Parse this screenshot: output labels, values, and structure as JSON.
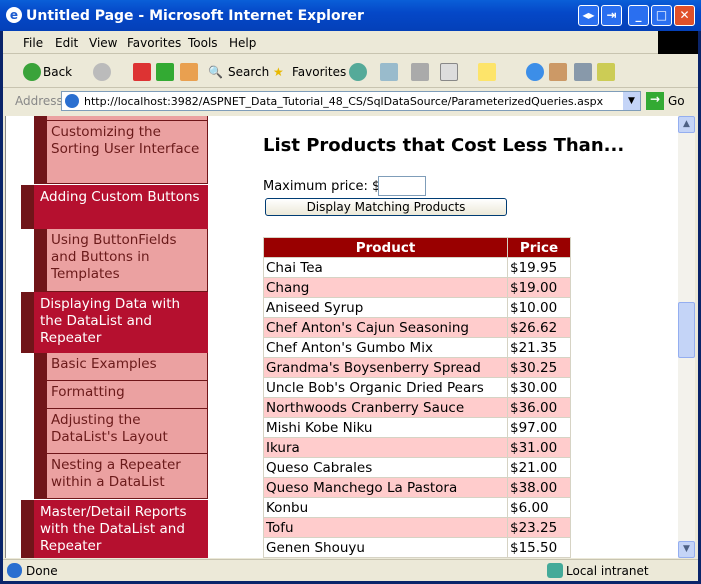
{
  "window": {
    "title": "Untitled Page - Microsoft Internet Explorer"
  },
  "menu": [
    "File",
    "Edit",
    "View",
    "Favorites",
    "Tools",
    "Help"
  ],
  "toolbar": {
    "back": "Back",
    "search": "Search",
    "favorites": "Favorites"
  },
  "address": {
    "label": "Address",
    "url": "http://localhost:3982/ASPNET_Data_Tutorial_48_CS/SqlDataSource/ParameterizedQueries.aspx",
    "go": "Go"
  },
  "sidebar": [
    {
      "type": "sub",
      "label": "Customizing the Sorting User Interface"
    },
    {
      "type": "top",
      "label": "Adding Custom Buttons"
    },
    {
      "type": "sub",
      "label": "Using ButtonFields and Buttons in Templates"
    },
    {
      "type": "top",
      "label": "Displaying Data with the DataList and Repeater"
    },
    {
      "type": "sub",
      "label": "Basic Examples"
    },
    {
      "type": "sub",
      "label": "Formatting"
    },
    {
      "type": "sub",
      "label": "Adjusting the DataList's Layout"
    },
    {
      "type": "sub",
      "label": "Nesting a Repeater within a DataList"
    },
    {
      "type": "top",
      "label": "Master/Detail Reports with the DataList and Repeater"
    }
  ],
  "main": {
    "heading": "List Products that Cost Less Than...",
    "price_label": "Maximum price: $",
    "price_value": "",
    "button": "Display Matching Products"
  },
  "table": {
    "headers": [
      "Product",
      "Price"
    ],
    "rows": [
      [
        "Chai Tea",
        "$19.95"
      ],
      [
        "Chang",
        "$19.00"
      ],
      [
        "Aniseed Syrup",
        "$10.00"
      ],
      [
        "Chef Anton's Cajun Seasoning",
        "$26.62"
      ],
      [
        "Chef Anton's Gumbo Mix",
        "$21.35"
      ],
      [
        "Grandma's Boysenberry Spread",
        "$30.25"
      ],
      [
        "Uncle Bob's Organic Dried Pears",
        "$30.00"
      ],
      [
        "Northwoods Cranberry Sauce",
        "$36.00"
      ],
      [
        "Mishi Kobe Niku",
        "$97.00"
      ],
      [
        "Ikura",
        "$31.00"
      ],
      [
        "Queso Cabrales",
        "$21.00"
      ],
      [
        "Queso Manchego La Pastora",
        "$38.00"
      ],
      [
        "Konbu",
        "$6.00"
      ],
      [
        "Tofu",
        "$23.25"
      ],
      [
        "Genen Shouyu",
        "$15.50"
      ]
    ]
  },
  "status": {
    "text": "Done",
    "zone": "Local intranet"
  },
  "colors": {
    "header": "#990000",
    "alt_row": "#ffcccc",
    "nav_top": "#b5102f",
    "nav_sub": "#eba1a1"
  }
}
